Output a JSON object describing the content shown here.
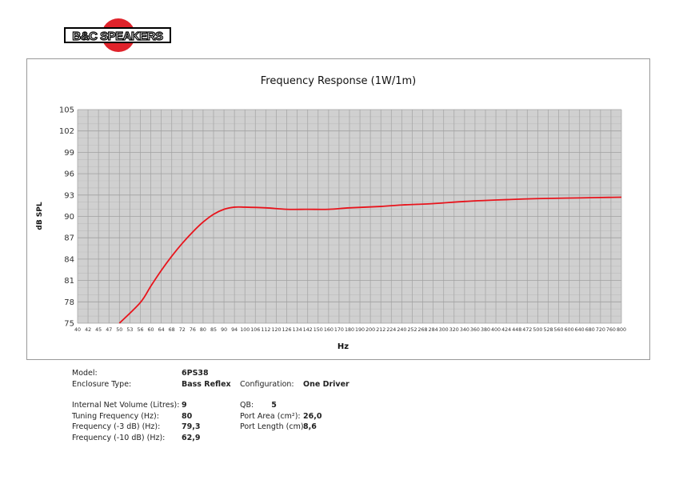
{
  "logo": {
    "text": "B&C SPEAKERS",
    "circle_color": "#e0232b"
  },
  "chart_data": {
    "type": "line",
    "title": "Frequency Response (1W/1m)",
    "xlabel": "Hz",
    "ylabel": "dB SPL",
    "ylim": [
      75,
      105
    ],
    "yticks": [
      75,
      78,
      81,
      84,
      87,
      90,
      93,
      96,
      99,
      102,
      105
    ],
    "xticks": [
      "40",
      "42",
      "45",
      "47",
      "50",
      "53",
      "56",
      "60",
      "64",
      "68",
      "72",
      "76",
      "80",
      "85",
      "90",
      "94",
      "100",
      "106",
      "112",
      "120",
      "126",
      "134",
      "142",
      "150",
      "160",
      "170",
      "180",
      "190",
      "200",
      "212",
      "224",
      "240",
      "252",
      "268",
      "284",
      "300",
      "320",
      "340",
      "360",
      "380",
      "400",
      "424",
      "448",
      "472",
      "500",
      "528",
      "560",
      "600",
      "640",
      "680",
      "720",
      "760",
      "800"
    ],
    "grid": true,
    "series": [
      {
        "name": "6PS38",
        "color": "#e8141c",
        "x": [
          50,
          56,
          60,
          64,
          68,
          72,
          76,
          80,
          85,
          90,
          94,
          100,
          112,
          126,
          142,
          160,
          180,
          212,
          240,
          284,
          340,
          400,
          500,
          640,
          800
        ],
        "y": [
          75,
          77.9,
          80.2,
          82.4,
          84.4,
          86.2,
          87.8,
          89.2,
          90.3,
          91.0,
          91.3,
          91.3,
          91.2,
          91.0,
          91.0,
          91.0,
          91.2,
          91.4,
          91.6,
          91.8,
          92.1,
          92.3,
          92.5,
          92.6,
          92.7
        ]
      }
    ]
  },
  "specs": {
    "model_label": "Model:",
    "model": "6PS38",
    "enclosure_label": "Enclosure Type:",
    "enclosure": "Bass Reflex",
    "config_label": "Configuration:",
    "config": "One Driver",
    "volume_label": "Internal Net Volume (Litres):",
    "volume": "9",
    "tuning_label": "Tuning Frequency (Hz):",
    "tuning": "80",
    "f3_label": "Frequency (-3 dB) (Hz):",
    "f3": "79,3",
    "f10_label": "Frequency (-10 dB) (Hz):",
    "f10": "62,9",
    "qb_label": "QB:",
    "qb": "5",
    "port_area_label": "Port Area (cm²):",
    "port_area": "26,0",
    "port_length_label": "Port Length (cm):",
    "port_length": "8,6"
  }
}
